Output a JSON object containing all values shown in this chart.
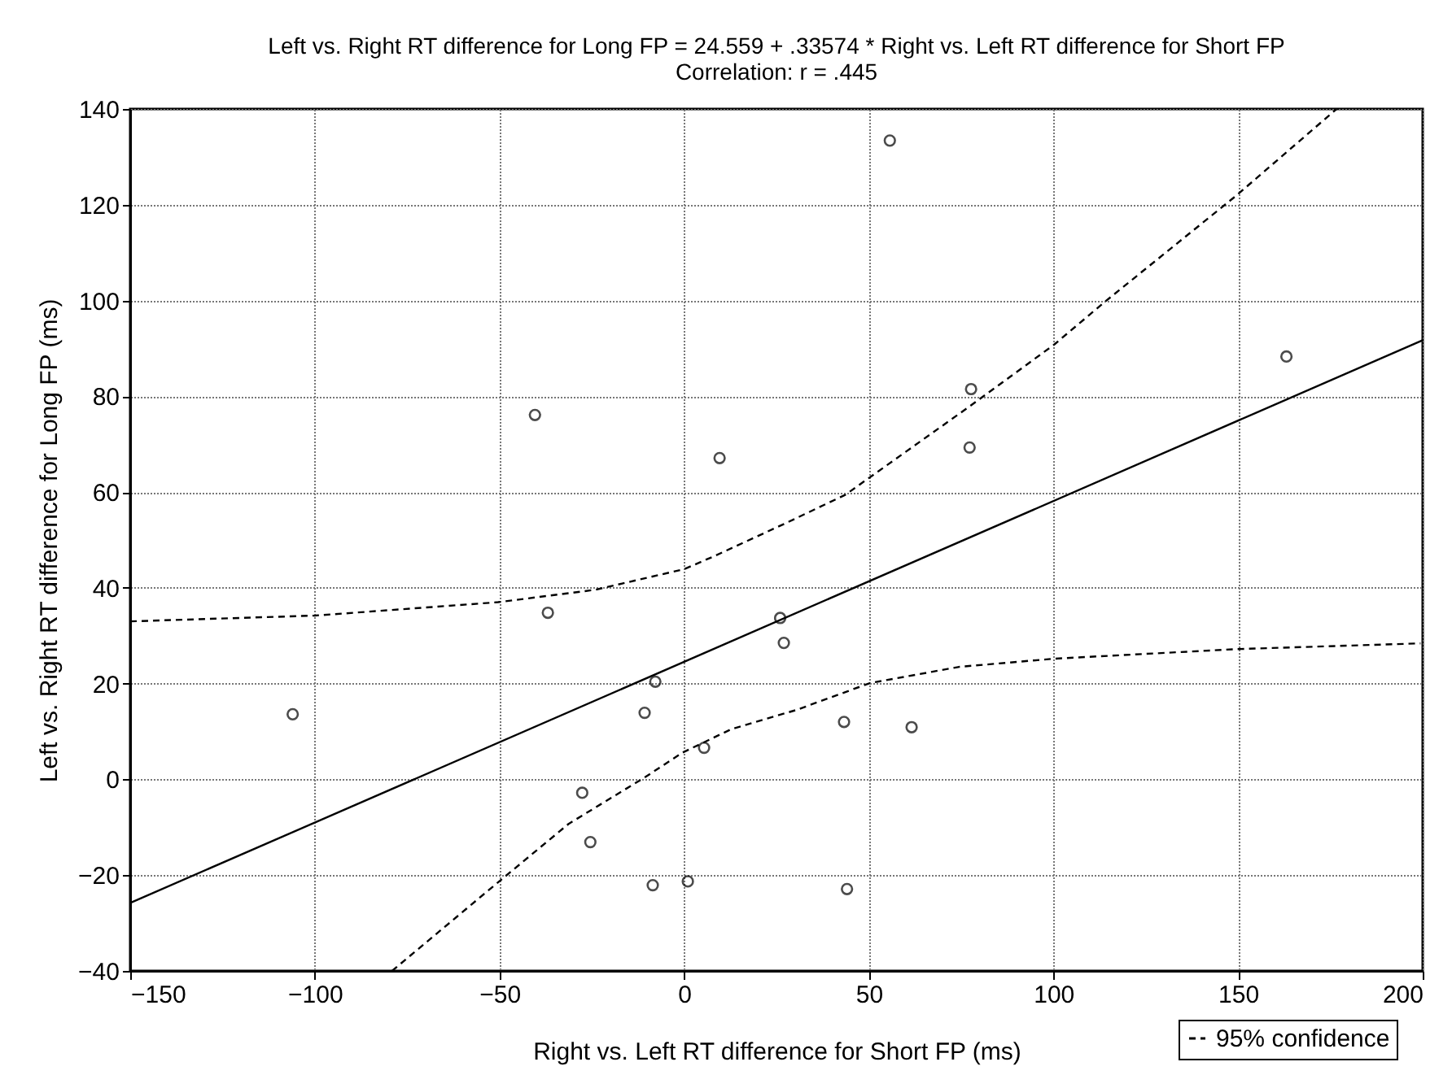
{
  "chart_data": {
    "type": "scatter",
    "title": "Left vs. Right RT difference for Long FP = 24.559 + .33574 * Right vs. Left RT difference for Short FP",
    "subtitle": "Correlation: r = .445",
    "xlabel": "Right vs. Left RT difference for Short FP (ms)",
    "ylabel": "Left vs. Right RT difference for Long FP (ms)",
    "xlim": [
      -150,
      200
    ],
    "xticks": [
      -150,
      -100,
      -50,
      0,
      50,
      100,
      150,
      200
    ],
    "ylim": [
      -40,
      140
    ],
    "yticks": [
      -40,
      -20,
      0,
      20,
      40,
      60,
      80,
      100,
      120,
      140
    ],
    "grid": true,
    "legend": "bottom right",
    "series": [
      {
        "type": "scatter",
        "color": "#000000",
        "marker": "circle",
        "x": [
          -40.4,
          9.6,
          55.7,
          77.7,
          77.3,
          163.1,
          -106,
          -36.9,
          -7.8,
          -10.7,
          5.4,
          -27.6,
          -25.4,
          -8.5,
          1.0,
          26.0,
          27.0,
          43.3,
          61.6,
          44.1
        ],
        "values": [
          76.1,
          67.1,
          133.4,
          81.5,
          69.3,
          88.3,
          13.6,
          34.8,
          20.4,
          13.9,
          6.6,
          -2.8,
          -13.1,
          -22.1,
          -21.3,
          33.7,
          28.5,
          12.0,
          10.9,
          -22.9
        ]
      },
      {
        "type": "line",
        "color": "#000000",
        "line_style": "solid",
        "x": [
          -150,
          200
        ],
        "values": [
          -25.8,
          91.7
        ]
      },
      {
        "type": "line",
        "name": "95% confidence",
        "color": "#000000",
        "line_style": "dashed",
        "x": [
          -150,
          -100,
          -50.4,
          -24,
          0,
          8.4,
          27.5,
          43.6,
          77.5,
          100.2,
          114.2,
          149.5,
          176.7
        ],
        "values": [
          33,
          34.2,
          37,
          39.6,
          43.9,
          46.7,
          53.5,
          59.4,
          78.0,
          90.8,
          99.9,
          121.9,
          140
        ]
      },
      {
        "type": "line",
        "color": "#000000",
        "line_style": "dashed",
        "x": [
          -79.1,
          -50.4,
          -31.3,
          -10.7,
          -0.4,
          12.8,
          30.4,
          50.3,
          74.5,
          100.2,
          149.5,
          199.4
        ],
        "values": [
          -40,
          -21.5,
          -9.3,
          0.4,
          5.6,
          10.5,
          14.5,
          20.1,
          23.5,
          25.2,
          27.2,
          28.4
        ]
      }
    ]
  }
}
